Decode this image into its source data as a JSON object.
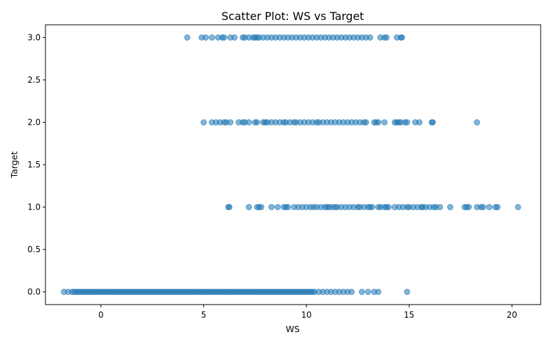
{
  "chart_data": {
    "type": "scatter",
    "title": "Scatter Plot: WS vs Target",
    "xlabel": "WS",
    "ylabel": "Target",
    "xlim": [
      -2.7,
      21.4
    ],
    "ylim": [
      -0.15,
      3.15
    ],
    "xticks": [
      0,
      5,
      10,
      15,
      20
    ],
    "xtick_labels": [
      "0",
      "5",
      "10",
      "15",
      "20"
    ],
    "yticks": [
      0.0,
      0.5,
      1.0,
      1.5,
      2.0,
      2.5,
      3.0
    ],
    "ytick_labels": [
      "0.0",
      "0.5",
      "1.0",
      "1.5",
      "2.0",
      "2.5",
      "3.0"
    ],
    "grid": false,
    "legend": "none",
    "marker_color": "#1f77b4",
    "marker_alpha": 0.55,
    "series": [
      {
        "y": 0,
        "x": [
          -1.8,
          -1.6,
          -1.4,
          -1.3,
          -1.2,
          -1.1,
          -1.0,
          -0.9,
          -0.8,
          -0.7,
          -0.6,
          -0.5,
          -0.4,
          -0.3,
          -0.2,
          -0.1,
          0.0,
          0.1,
          0.2,
          0.3,
          0.4,
          0.5,
          0.6,
          0.7,
          0.8,
          0.9,
          1.0,
          1.1,
          1.2,
          1.3,
          1.4,
          1.5,
          1.6,
          1.7,
          1.8,
          1.9,
          2.0,
          2.1,
          2.2,
          2.3,
          2.4,
          2.5,
          2.6,
          2.7,
          2.8,
          2.9,
          3.0,
          3.1,
          3.2,
          3.3,
          3.4,
          3.5,
          3.6,
          3.7,
          3.8,
          3.9,
          4.0,
          4.1,
          4.2,
          4.3,
          4.4,
          4.5,
          4.6,
          4.7,
          4.8,
          4.9,
          5.0,
          5.1,
          5.2,
          5.3,
          5.4,
          5.5,
          5.6,
          5.7,
          5.8,
          5.9,
          6.0,
          6.1,
          6.2,
          6.3,
          6.4,
          6.5,
          6.6,
          6.7,
          6.8,
          6.9,
          7.0,
          7.1,
          7.2,
          7.3,
          7.4,
          7.5,
          7.6,
          7.7,
          7.8,
          7.9,
          8.0,
          8.1,
          8.2,
          8.3,
          8.4,
          8.5,
          8.6,
          8.7,
          8.8,
          8.9,
          9.0,
          9.1,
          9.2,
          9.3,
          9.4,
          9.5,
          9.6,
          9.7,
          9.8,
          9.9,
          10.0,
          10.1,
          10.2,
          10.3,
          10.4,
          10.6,
          10.8,
          11.0,
          11.2,
          11.4,
          11.6,
          11.8,
          12.0,
          12.2,
          12.7,
          13.0,
          13.3,
          13.5,
          14.9
        ]
      },
      {
        "y": 1,
        "x": [
          6.2,
          6.25,
          7.2,
          7.6,
          7.7,
          7.8,
          8.3,
          8.6,
          8.9,
          9.0,
          9.1,
          9.4,
          9.6,
          9.8,
          10.0,
          10.2,
          10.35,
          10.5,
          10.7,
          10.9,
          11.0,
          11.1,
          11.25,
          11.4,
          11.5,
          11.7,
          11.9,
          12.1,
          12.3,
          12.5,
          12.6,
          12.8,
          13.0,
          13.1,
          13.2,
          13.5,
          13.6,
          13.8,
          13.9,
          14.0,
          14.3,
          14.5,
          14.7,
          14.9,
          15.0,
          15.2,
          15.4,
          15.6,
          15.65,
          15.8,
          16.0,
          16.2,
          16.3,
          16.5,
          17.0,
          17.7,
          17.8,
          17.9,
          18.3,
          18.5,
          18.6,
          18.9,
          19.2,
          19.3,
          20.3
        ]
      },
      {
        "y": 2,
        "x": [
          5.0,
          5.4,
          5.6,
          5.8,
          6.0,
          6.1,
          6.3,
          6.7,
          6.9,
          7.0,
          7.2,
          7.5,
          7.6,
          7.9,
          8.0,
          8.1,
          8.3,
          8.5,
          8.7,
          8.9,
          9.0,
          9.2,
          9.4,
          9.5,
          9.7,
          9.9,
          10.1,
          10.3,
          10.5,
          10.6,
          10.8,
          11.0,
          11.2,
          11.4,
          11.6,
          11.8,
          12.0,
          12.2,
          12.4,
          12.6,
          12.8,
          12.9,
          13.3,
          13.4,
          13.5,
          13.8,
          14.3,
          14.4,
          14.5,
          14.6,
          14.8,
          14.9,
          15.3,
          15.5,
          16.1,
          16.15,
          18.3
        ]
      },
      {
        "y": 3,
        "x": [
          4.2,
          4.9,
          5.1,
          5.4,
          5.7,
          5.9,
          6.0,
          6.3,
          6.5,
          6.9,
          7.0,
          7.2,
          7.4,
          7.5,
          7.6,
          7.7,
          7.9,
          8.1,
          8.3,
          8.5,
          8.7,
          8.9,
          9.1,
          9.3,
          9.5,
          9.7,
          9.9,
          10.1,
          10.3,
          10.5,
          10.7,
          10.9,
          11.1,
          11.3,
          11.5,
          11.7,
          11.9,
          12.1,
          12.3,
          12.5,
          12.7,
          12.9,
          13.1,
          13.6,
          13.8,
          13.9,
          14.4,
          14.6,
          14.65
        ]
      }
    ]
  }
}
